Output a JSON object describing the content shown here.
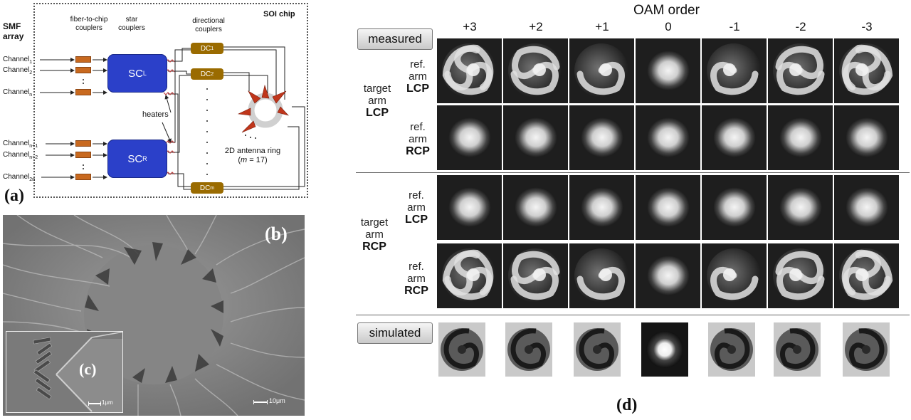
{
  "panel_a": {
    "label": "(a)",
    "smf": [
      "SMF",
      "array"
    ],
    "fiber_to_chip": [
      "fiber-to-chip",
      "couplers"
    ],
    "star": [
      "star",
      "couplers"
    ],
    "directional": [
      "directional",
      "couplers"
    ],
    "soi_chip": "SOI chip",
    "channels": [
      {
        "base": "Channel",
        "sub": "1"
      },
      {
        "base": "Channel",
        "sub": "2"
      },
      {
        "base": "Channel",
        "sub": "n"
      },
      {
        "base": "Channel",
        "sub": "n+1"
      },
      {
        "base": "Channel",
        "sub": "n+2"
      },
      {
        "base": "Channel",
        "sub": "2n"
      }
    ],
    "sc_l": {
      "base": "SC",
      "sub": "L"
    },
    "sc_r": {
      "base": "SC",
      "sub": "R"
    },
    "dc": [
      {
        "base": "DC",
        "sub": "1"
      },
      {
        "base": "DC",
        "sub": "2"
      },
      {
        "base": "DC",
        "sub": "m"
      }
    ],
    "heaters": "heaters",
    "antenna": "2D antenna ring",
    "antenna_m_pre": "(",
    "antenna_m_var": "m",
    "antenna_m_post": " = 17)",
    "colors": {
      "sc": "#2b40c9",
      "dc": "#9a6b00",
      "coupler": "#c8691f",
      "heater": "#c04040",
      "antenna": "#c0361b"
    }
  },
  "panel_b": {
    "label": "(b)",
    "scale": "10μm"
  },
  "panel_c": {
    "label": "(c)",
    "scale": "1μm"
  },
  "panel_d": {
    "label": "(d)",
    "oam_title": "OAM order",
    "orders": [
      "+3",
      "+2",
      "+1",
      "0",
      "-1",
      "-2",
      "-3"
    ],
    "measured_tag": "measured",
    "simulated_tag": "simulated",
    "target_lcp": [
      "target",
      "arm",
      "LCP"
    ],
    "target_rcp": [
      "target",
      "arm",
      "RCP"
    ],
    "ref_lcp": [
      "ref.",
      "arm",
      "LCP"
    ],
    "ref_rcp": [
      "ref.",
      "arm",
      "RCP"
    ]
  }
}
